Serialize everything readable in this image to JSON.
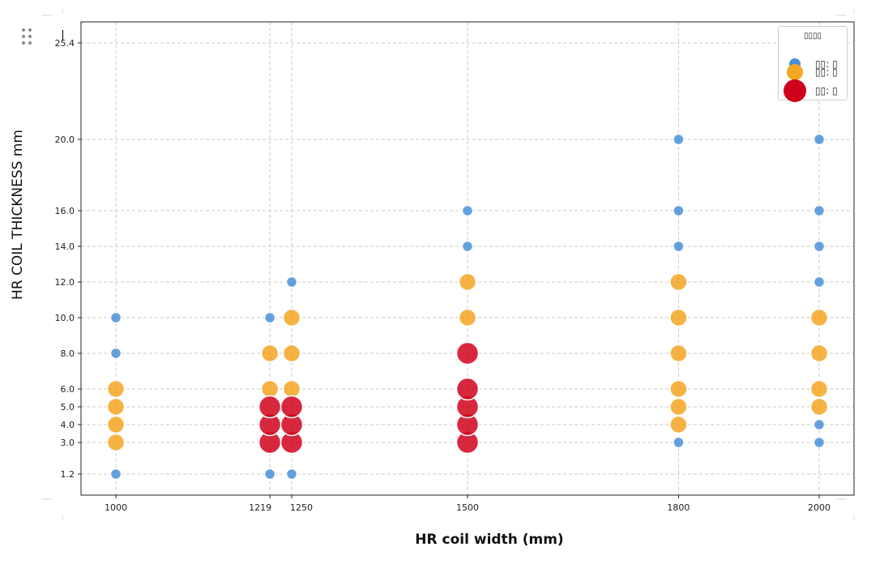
{
  "chart_data": {
    "type": "scatter",
    "title": "",
    "xlabel": "HR coil width (mm)",
    "ylabel": "HR COIL THICKNESS mm",
    "x_ticks": [
      "1000",
      "1219",
      "1250",
      "1500",
      "1800",
      "2000"
    ],
    "x_tick_values": [
      1000,
      1219,
      1250,
      1500,
      1800,
      2000
    ],
    "y_ticks": [
      "1.2",
      "3.0",
      "4.0",
      "5.0",
      "6.0",
      "8.0",
      "10.0",
      "12.0",
      "14.0",
      "16.0",
      "20.0",
      "25.4"
    ],
    "y_tick_values": [
      1.2,
      3.0,
      4.0,
      5.0,
      6.0,
      8.0,
      10.0,
      12.0,
      14.0,
      16.0,
      20.0,
      25.4
    ],
    "x_scale": "linear",
    "y_scale": "nonlinear (ticks evenly spaced by value rank)",
    "grid": true,
    "legend_title": "▯▯▯▯",
    "legend_position": "top-right",
    "series": [
      {
        "name": "▯▯: ▯",
        "color": "#4a90d9",
        "marker_size": "small",
        "points": [
          [
            1000,
            1.2
          ],
          [
            1000,
            8.0
          ],
          [
            1000,
            10.0
          ],
          [
            1219,
            1.2
          ],
          [
            1219,
            10.0
          ],
          [
            1250,
            1.2
          ],
          [
            1250,
            12.0
          ],
          [
            1500,
            14.0
          ],
          [
            1500,
            16.0
          ],
          [
            1800,
            3.0
          ],
          [
            1800,
            14.0
          ],
          [
            1800,
            16.0
          ],
          [
            1800,
            20.0
          ],
          [
            2000,
            3.0
          ],
          [
            2000,
            4.0
          ],
          [
            2000,
            12.0
          ],
          [
            2000,
            14.0
          ],
          [
            2000,
            16.0
          ],
          [
            2000,
            20.0
          ]
        ]
      },
      {
        "name": "▯▯: ▯",
        "color": "#f5a623",
        "marker_size": "medium",
        "points": [
          [
            1000,
            3.0
          ],
          [
            1000,
            4.0
          ],
          [
            1000,
            5.0
          ],
          [
            1000,
            6.0
          ],
          [
            1219,
            6.0
          ],
          [
            1219,
            8.0
          ],
          [
            1250,
            6.0
          ],
          [
            1250,
            8.0
          ],
          [
            1250,
            10.0
          ],
          [
            1500,
            10.0
          ],
          [
            1500,
            12.0
          ],
          [
            1800,
            4.0
          ],
          [
            1800,
            5.0
          ],
          [
            1800,
            6.0
          ],
          [
            1800,
            8.0
          ],
          [
            1800,
            10.0
          ],
          [
            1800,
            12.0
          ],
          [
            2000,
            5.0
          ],
          [
            2000,
            6.0
          ],
          [
            2000,
            8.0
          ],
          [
            2000,
            10.0
          ]
        ]
      },
      {
        "name": "▯▯: ▯",
        "color": "#d0021b",
        "marker_size": "large",
        "points": [
          [
            1219,
            3.0
          ],
          [
            1219,
            4.0
          ],
          [
            1219,
            5.0
          ],
          [
            1250,
            3.0
          ],
          [
            1250,
            4.0
          ],
          [
            1250,
            5.0
          ],
          [
            1500,
            3.0
          ],
          [
            1500,
            4.0
          ],
          [
            1500,
            5.0
          ],
          [
            1500,
            6.0
          ],
          [
            1500,
            8.0
          ]
        ]
      }
    ]
  }
}
